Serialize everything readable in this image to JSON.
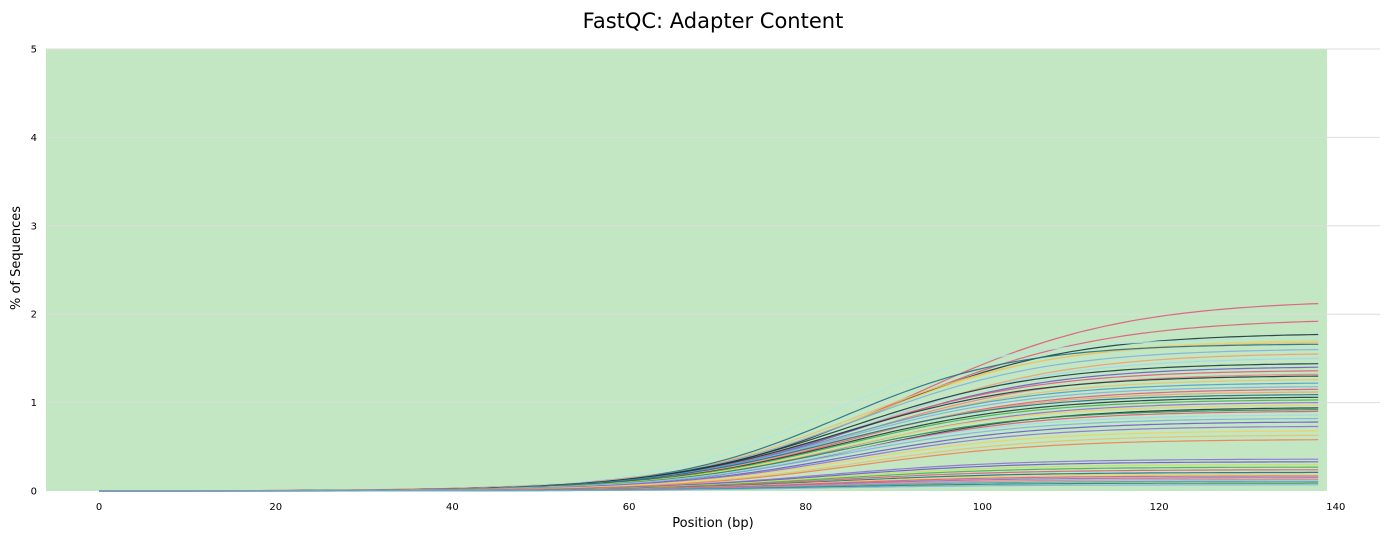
{
  "chart_data": {
    "type": "line",
    "title": "FastQC: Adapter Content",
    "xlabel": "Position (bp)",
    "ylabel": "% of Sequences",
    "xlim": [
      -6,
      145
    ],
    "ylim": [
      0,
      5
    ],
    "x_ticks": [
      0,
      20,
      40,
      60,
      80,
      100,
      120,
      140
    ],
    "y_ticks": [
      0,
      1,
      2,
      3,
      4,
      5
    ],
    "grid": "horizontal",
    "background_band": {
      "from": 0,
      "to": 5,
      "color": "#c3e6c3",
      "x_end": 139
    },
    "curve_model": "logistic",
    "series_end_x": 138,
    "series": [
      {
        "color": "#e05a7a",
        "values_at_end": 2.12,
        "mid": 92,
        "width": 12
      },
      {
        "color": "#e05a7a",
        "values_at_end": 1.92,
        "mid": 90,
        "width": 12
      },
      {
        "color": "#1a3a3a",
        "values_at_end": 1.77,
        "mid": 88,
        "width": 11
      },
      {
        "color": "#aee8e0",
        "values_at_end": 1.72,
        "mid": 82,
        "width": 10
      },
      {
        "color": "#f0d060",
        "values_at_end": 1.7,
        "mid": 87,
        "width": 11
      },
      {
        "color": "#e8c070",
        "values_at_end": 1.68,
        "mid": 86,
        "width": 11
      },
      {
        "color": "#1f6f8b",
        "values_at_end": 1.66,
        "mid": 84,
        "width": 10
      },
      {
        "color": "#7fb0e0",
        "values_at_end": 1.6,
        "mid": 86,
        "width": 11
      },
      {
        "color": "#f0a070",
        "values_at_end": 1.55,
        "mid": 88,
        "width": 11
      },
      {
        "color": "#a0d8f0",
        "values_at_end": 1.5,
        "mid": 87,
        "width": 11
      },
      {
        "color": "#1a3a3a",
        "values_at_end": 1.44,
        "mid": 85,
        "width": 11
      },
      {
        "color": "#6a5acd",
        "values_at_end": 1.4,
        "mid": 86,
        "width": 11
      },
      {
        "color": "#e05a7a",
        "values_at_end": 1.36,
        "mid": 85,
        "width": 11
      },
      {
        "color": "#f08080",
        "values_at_end": 1.32,
        "mid": 86,
        "width": 11
      },
      {
        "color": "#1a3a3a",
        "values_at_end": 1.3,
        "mid": 84,
        "width": 11
      },
      {
        "color": "#e8c070",
        "values_at_end": 1.26,
        "mid": 85,
        "width": 11
      },
      {
        "color": "#4aa0d0",
        "values_at_end": 1.22,
        "mid": 84,
        "width": 11
      },
      {
        "color": "#7fb0e0",
        "values_at_end": 1.18,
        "mid": 84,
        "width": 11
      },
      {
        "color": "#e05a7a",
        "values_at_end": 1.15,
        "mid": 85,
        "width": 11
      },
      {
        "color": "#f0a070",
        "values_at_end": 1.12,
        "mid": 84,
        "width": 11
      },
      {
        "color": "#1f6f8b",
        "values_at_end": 1.09,
        "mid": 83,
        "width": 11
      },
      {
        "color": "#1a3a3a",
        "values_at_end": 1.06,
        "mid": 84,
        "width": 11
      },
      {
        "color": "#4caf50",
        "values_at_end": 1.03,
        "mid": 84,
        "width": 11
      },
      {
        "color": "#9070d0",
        "values_at_end": 1.0,
        "mid": 85,
        "width": 11
      },
      {
        "color": "#f0d060",
        "values_at_end": 0.97,
        "mid": 84,
        "width": 11
      },
      {
        "color": "#1a3a3a",
        "values_at_end": 0.94,
        "mid": 86,
        "width": 11
      },
      {
        "color": "#2e8b57",
        "values_at_end": 0.92,
        "mid": 84,
        "width": 11
      },
      {
        "color": "#e05a7a",
        "values_at_end": 0.9,
        "mid": 85,
        "width": 11
      },
      {
        "color": "#a0d8f0",
        "values_at_end": 0.86,
        "mid": 84,
        "width": 11
      },
      {
        "color": "#7fb0e0",
        "values_at_end": 0.82,
        "mid": 84,
        "width": 11
      },
      {
        "color": "#6a5acd",
        "values_at_end": 0.78,
        "mid": 85,
        "width": 11
      },
      {
        "color": "#9070d0",
        "values_at_end": 0.73,
        "mid": 85,
        "width": 11
      },
      {
        "color": "#f0d060",
        "values_at_end": 0.68,
        "mid": 85,
        "width": 11
      },
      {
        "color": "#e8c070",
        "values_at_end": 0.63,
        "mid": 86,
        "width": 11
      },
      {
        "color": "#f08050",
        "values_at_end": 0.58,
        "mid": 86,
        "width": 11
      },
      {
        "color": "#9070d0",
        "values_at_end": 0.36,
        "mid": 82,
        "width": 11
      },
      {
        "color": "#6a5acd",
        "values_at_end": 0.33,
        "mid": 82,
        "width": 11
      },
      {
        "color": "#c8e060",
        "values_at_end": 0.3,
        "mid": 82,
        "width": 11
      },
      {
        "color": "#4caf50",
        "values_at_end": 0.27,
        "mid": 82,
        "width": 11
      },
      {
        "color": "#e05a7a",
        "values_at_end": 0.24,
        "mid": 82,
        "width": 11
      },
      {
        "color": "#1f6f8b",
        "values_at_end": 0.21,
        "mid": 82,
        "width": 11
      },
      {
        "color": "#f0d060",
        "values_at_end": 0.19,
        "mid": 82,
        "width": 11
      },
      {
        "color": "#e05a7a",
        "values_at_end": 0.17,
        "mid": 82,
        "width": 11
      },
      {
        "color": "#9070d0",
        "values_at_end": 0.15,
        "mid": 82,
        "width": 11
      },
      {
        "color": "#f08080",
        "values_at_end": 0.13,
        "mid": 82,
        "width": 11
      },
      {
        "color": "#4aa0d0",
        "values_at_end": 0.11,
        "mid": 82,
        "width": 11
      },
      {
        "color": "#2e8b57",
        "values_at_end": 0.09,
        "mid": 82,
        "width": 11
      },
      {
        "color": "#7fb0e0",
        "values_at_end": 0.07,
        "mid": 82,
        "width": 11
      }
    ]
  }
}
